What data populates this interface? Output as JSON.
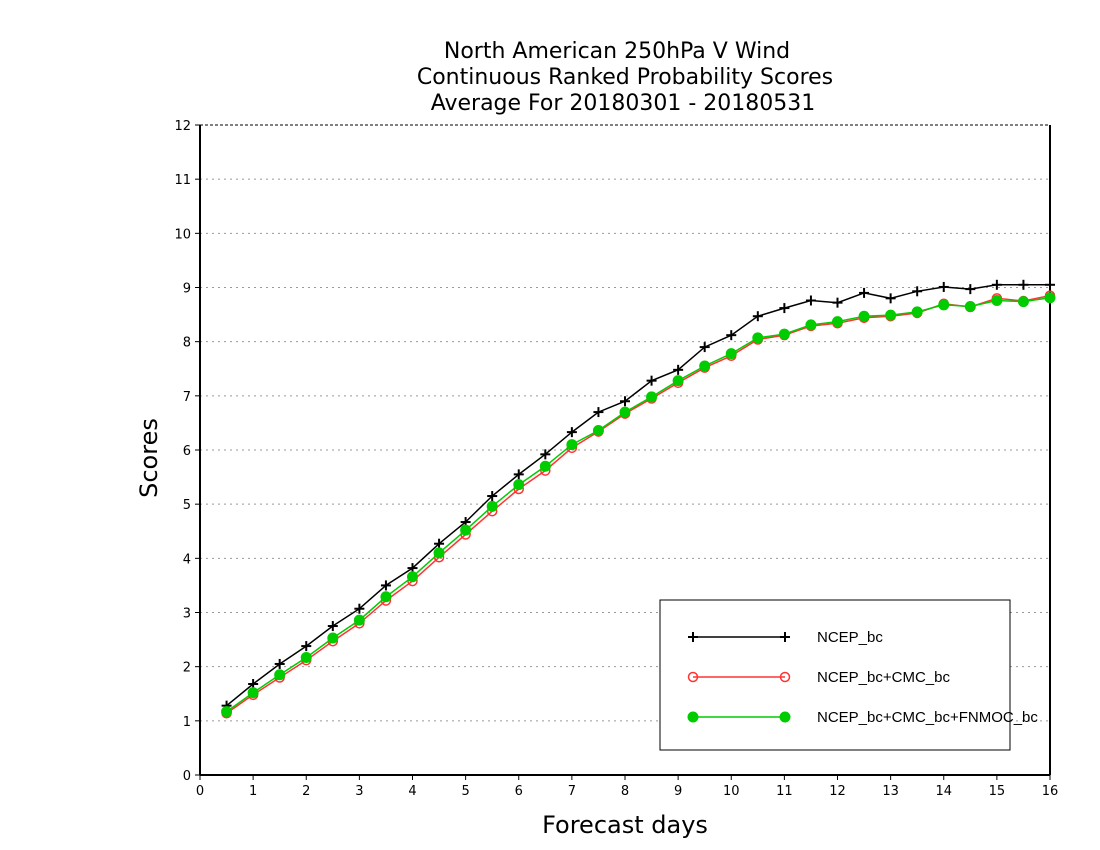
{
  "chart_data": {
    "type": "line",
    "title_lines": [
      "North American 250hPa V Wind",
      "Continuous Ranked Probability Scores",
      "Average For 20180301 - 20180531"
    ],
    "xlabel": "Forecast days",
    "ylabel": "Scores",
    "xlim": [
      0,
      16
    ],
    "ylim": [
      0,
      12
    ],
    "xticks": [
      0,
      1,
      2,
      3,
      4,
      5,
      6,
      7,
      8,
      9,
      10,
      11,
      12,
      13,
      14,
      15,
      16
    ],
    "yticks": [
      0,
      1,
      2,
      3,
      4,
      5,
      6,
      7,
      8,
      9,
      10,
      11,
      12
    ],
    "grid": "horizontal-dotted",
    "legend_position": "bottom-right",
    "x": [
      0.5,
      1,
      1.5,
      2,
      2.5,
      3,
      3.5,
      4,
      4.5,
      5,
      5.5,
      6,
      6.5,
      7,
      7.5,
      8,
      8.5,
      9,
      9.5,
      10,
      10.5,
      11,
      11.5,
      12,
      12.5,
      13,
      13.5,
      14,
      14.5,
      15,
      15.5,
      16
    ],
    "series": [
      {
        "name": "NCEP_bc",
        "color": "#000000",
        "marker": "plus",
        "values": [
          1.28,
          1.68,
          2.05,
          2.38,
          2.75,
          3.07,
          3.5,
          3.82,
          4.27,
          4.67,
          5.15,
          5.55,
          5.92,
          6.33,
          6.7,
          6.9,
          7.28,
          7.48,
          7.9,
          8.12,
          8.47,
          8.62,
          8.76,
          8.72,
          8.9,
          8.8,
          8.93,
          9.01,
          8.97,
          9.05,
          9.05,
          9.05
        ]
      },
      {
        "name": "NCEP_bc+CMC_bc",
        "color": "#ff3333",
        "marker": "open-circle",
        "values": [
          1.14,
          1.48,
          1.8,
          2.12,
          2.47,
          2.8,
          3.22,
          3.58,
          4.02,
          4.44,
          4.87,
          5.28,
          5.62,
          6.04,
          6.34,
          6.67,
          6.95,
          7.24,
          7.52,
          7.74,
          8.04,
          8.12,
          8.29,
          8.34,
          8.44,
          8.47,
          8.53,
          8.7,
          8.64,
          8.8,
          8.75,
          8.85
        ]
      },
      {
        "name": "NCEP_bc+CMC_bc+FNMOC_bc",
        "color": "#00cc00",
        "marker": "filled-circle",
        "values": [
          1.17,
          1.52,
          1.85,
          2.17,
          2.53,
          2.86,
          3.29,
          3.66,
          4.1,
          4.52,
          4.96,
          5.36,
          5.7,
          6.1,
          6.36,
          6.7,
          6.98,
          7.28,
          7.55,
          7.78,
          8.07,
          8.14,
          8.31,
          8.37,
          8.47,
          8.49,
          8.55,
          8.68,
          8.65,
          8.76,
          8.74,
          8.81
        ]
      }
    ]
  }
}
